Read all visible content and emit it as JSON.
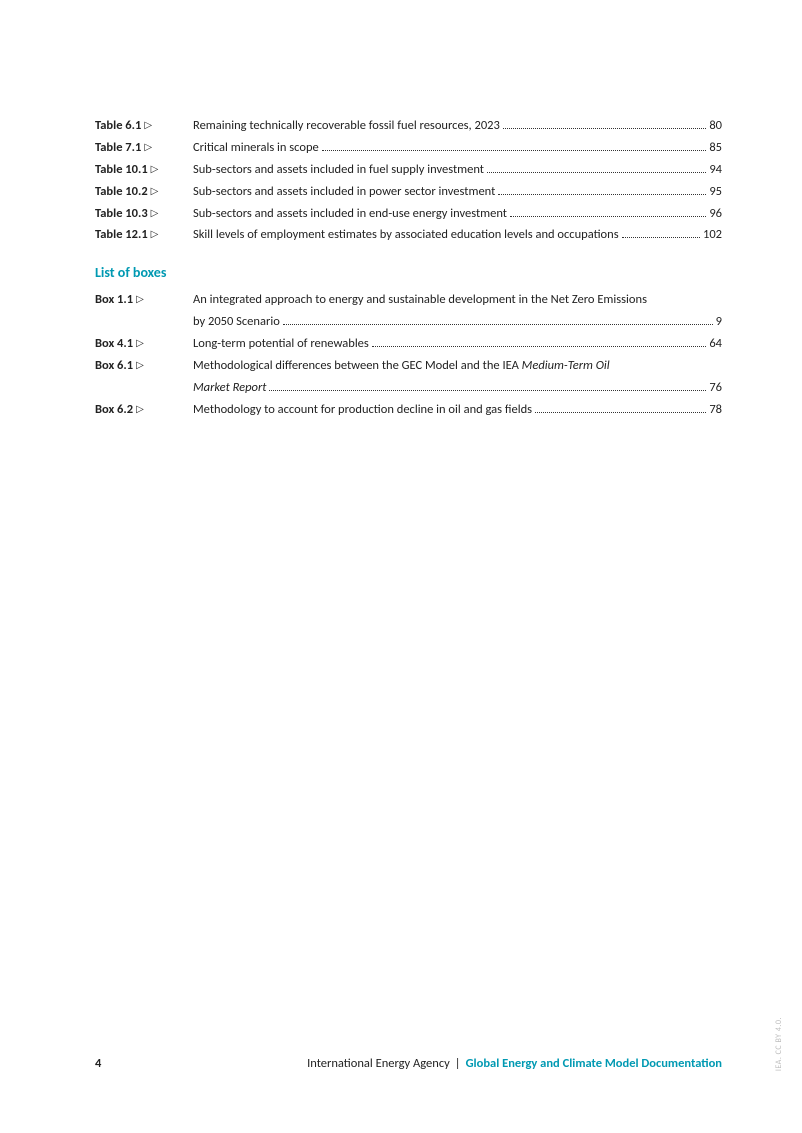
{
  "tables": [
    {
      "label": "Table 6.1",
      "desc": "Remaining technically recoverable fossil fuel resources, 2023",
      "page": "80"
    },
    {
      "label": "Table 7.1",
      "desc": "Critical minerals in scope",
      "page": "85"
    },
    {
      "label": "Table 10.1",
      "desc": "Sub-sectors and assets included in fuel supply investment",
      "page": "94"
    },
    {
      "label": "Table 10.2",
      "desc": "Sub-sectors and assets included in power sector investment",
      "page": "95"
    },
    {
      "label": "Table 10.3",
      "desc": "Sub-sectors and assets included in end-use energy investment",
      "page": "96"
    },
    {
      "label": "Table 12.1",
      "desc": "Skill levels of employment estimates by associated education levels and occupations",
      "page": "102"
    }
  ],
  "boxes_heading": "List of boxes",
  "boxes": [
    {
      "label": "Box 1.1",
      "desc1": "An integrated approach to energy and sustainable development in the Net Zero Emissions",
      "desc2": "by 2050 Scenario",
      "page": "9"
    },
    {
      "label": "Box 4.1",
      "desc": "Long-term potential of renewables",
      "page": "64"
    },
    {
      "label": "Box 6.1",
      "desc1_pre": "Methodological differences between the GEC Model and the IEA ",
      "desc1_italic": "Medium-Term Oil",
      "desc2_italic": "Market Report",
      "page": "76"
    },
    {
      "label": "Box 6.2",
      "desc": "Methodology to account for production decline in oil and gas fields",
      "page": "78"
    }
  ],
  "footer": {
    "page_number": "4",
    "org": "International Energy Agency",
    "sep": "|",
    "title": "Global Energy and Climate Model Documentation"
  },
  "side_note": "IEA. CC BY 4.0.",
  "colors": {
    "accent": "#0099b2",
    "text": "#222222",
    "muted": "#bdbdbd"
  }
}
